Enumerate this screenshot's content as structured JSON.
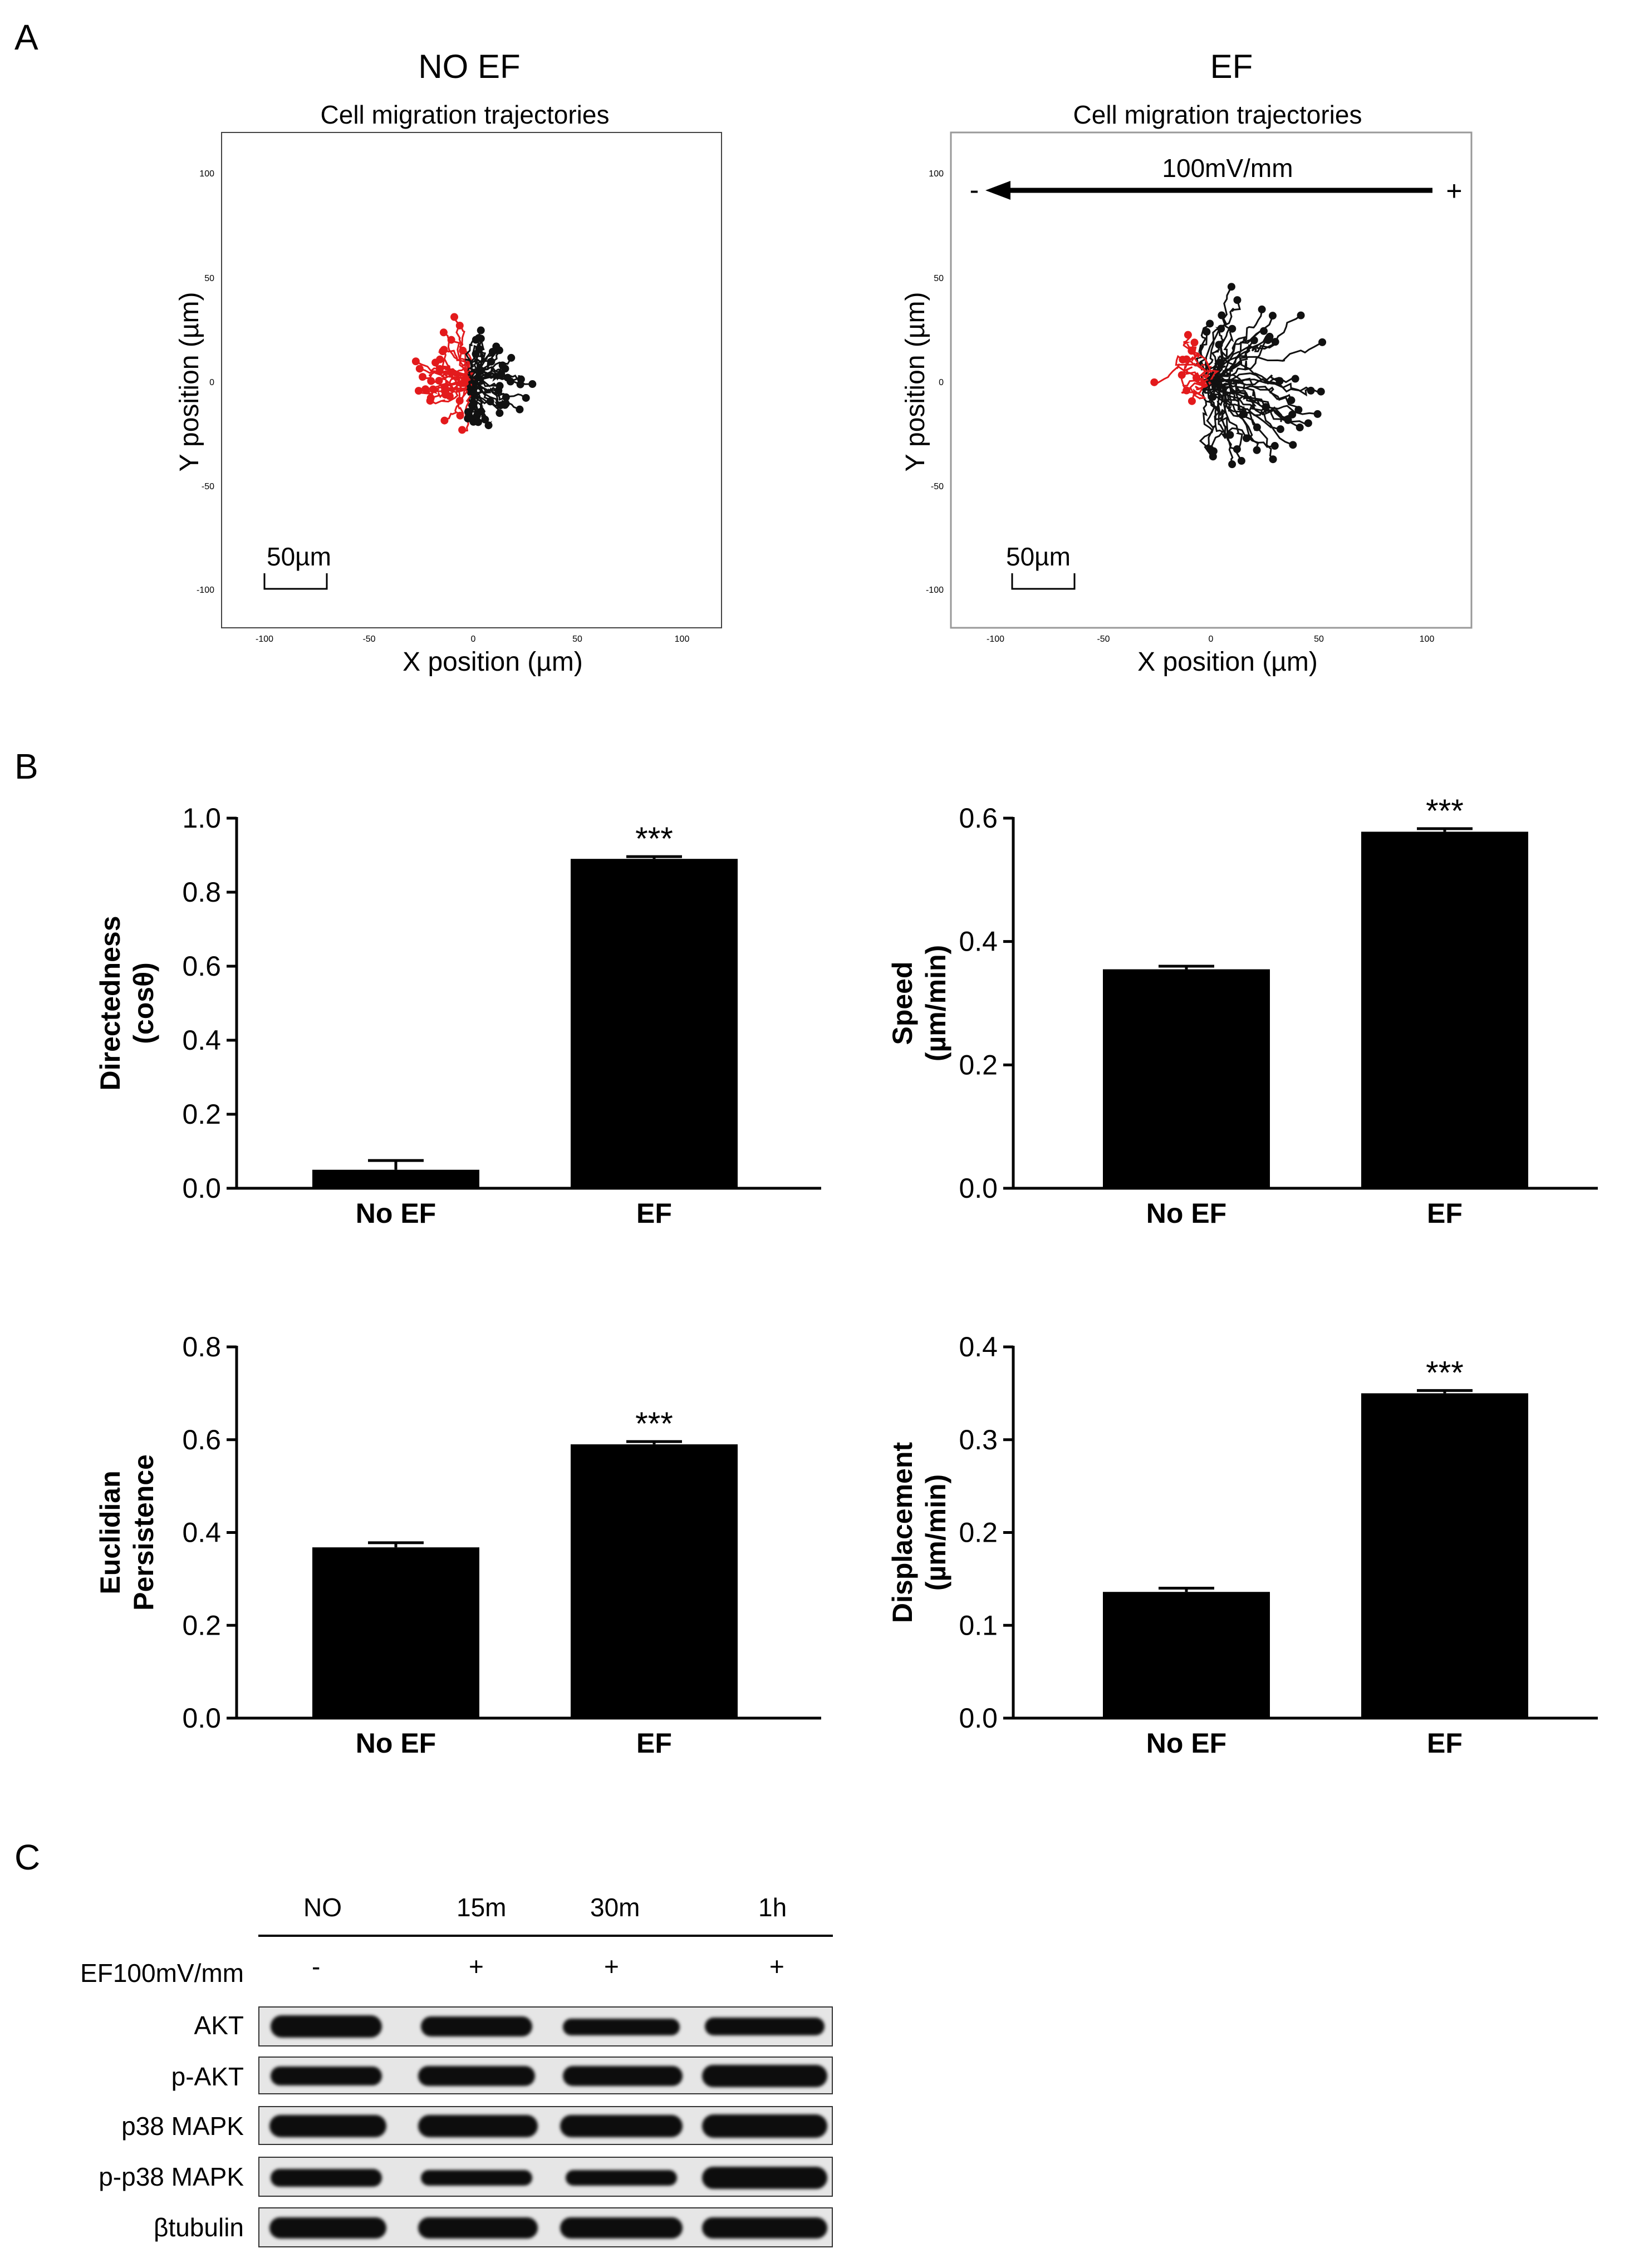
{
  "panels": {
    "a": "A",
    "b": "B",
    "c": "C"
  },
  "trajectory_plots": [
    {
      "condition": "NO EF",
      "title": "Cell migration trajectories",
      "xlabel": "X position (µm)",
      "ylabel": "Y position (µm)",
      "xticks": [
        "-100",
        "-50",
        "0",
        "50",
        "100"
      ],
      "yticks": [
        "100",
        "50",
        "0",
        "-50",
        "-100"
      ],
      "scalebar": "50µm",
      "field": null,
      "series_colors": {
        "toward_negative": "#e31a1c",
        "toward_positive": "#111111"
      }
    },
    {
      "condition": "EF",
      "title": "Cell migration trajectories",
      "xlabel": "X position (µm)",
      "ylabel": "Y position (µm)",
      "xticks": [
        "-100",
        "-50",
        "0",
        "50",
        "100"
      ],
      "yticks": [
        "100",
        "50",
        "0",
        "-50",
        "-100"
      ],
      "scalebar": "50µm",
      "field": {
        "label": "100mV/mm",
        "minus": "-",
        "plus": "+"
      },
      "series_colors": {
        "toward_negative": "#e31a1c",
        "toward_positive": "#111111"
      }
    }
  ],
  "chart_data": [
    {
      "type": "bar",
      "categories": [
        "No EF",
        "EF"
      ],
      "values": [
        0.05,
        0.89
      ],
      "errors": [
        0.025,
        0.006
      ],
      "ylabel_lines": [
        "Directedness",
        "(cosθ)"
      ],
      "ylim": [
        0,
        1.0
      ],
      "yticks": [
        "0.0",
        "0.2",
        "0.4",
        "0.6",
        "0.8",
        "1.0"
      ],
      "significance": [
        "",
        "***"
      ]
    },
    {
      "type": "bar",
      "categories": [
        "No EF",
        "EF"
      ],
      "values": [
        0.355,
        0.578
      ],
      "errors": [
        0.005,
        0.005
      ],
      "ylabel_lines": [
        "Speed",
        "(µm/min)"
      ],
      "ylim": [
        0,
        0.6
      ],
      "yticks": [
        "0.0",
        "0.2",
        "0.4",
        "0.6"
      ],
      "significance": [
        "",
        "***"
      ]
    },
    {
      "type": "bar",
      "categories": [
        "No EF",
        "EF"
      ],
      "values": [
        0.368,
        0.59
      ],
      "errors": [
        0.01,
        0.006
      ],
      "ylabel_lines": [
        "Euclidian",
        "Persistence"
      ],
      "ylim": [
        0,
        0.8
      ],
      "yticks": [
        "0.0",
        "0.2",
        "0.4",
        "0.6",
        "0.8"
      ],
      "significance": [
        "",
        "***"
      ]
    },
    {
      "type": "bar",
      "categories": [
        "No EF",
        "EF"
      ],
      "values": [
        0.136,
        0.35
      ],
      "errors": [
        0.004,
        0.003
      ],
      "ylabel_lines": [
        "Displacement",
        "(µm/min)"
      ],
      "ylim": [
        0,
        0.4
      ],
      "yticks": [
        "0.0",
        "0.1",
        "0.2",
        "0.3",
        "0.4"
      ],
      "significance": [
        "",
        "***"
      ]
    }
  ],
  "western_blot": {
    "time_points": [
      "NO",
      "15m",
      "30m",
      "1h"
    ],
    "ef_label": "EF100mV/mm",
    "ef_marks": [
      "-",
      "+",
      "+",
      "+"
    ],
    "rows": [
      "AKT",
      "p-AKT",
      "p38 MAPK",
      "p-p38 MAPK",
      "βtubulin"
    ]
  }
}
